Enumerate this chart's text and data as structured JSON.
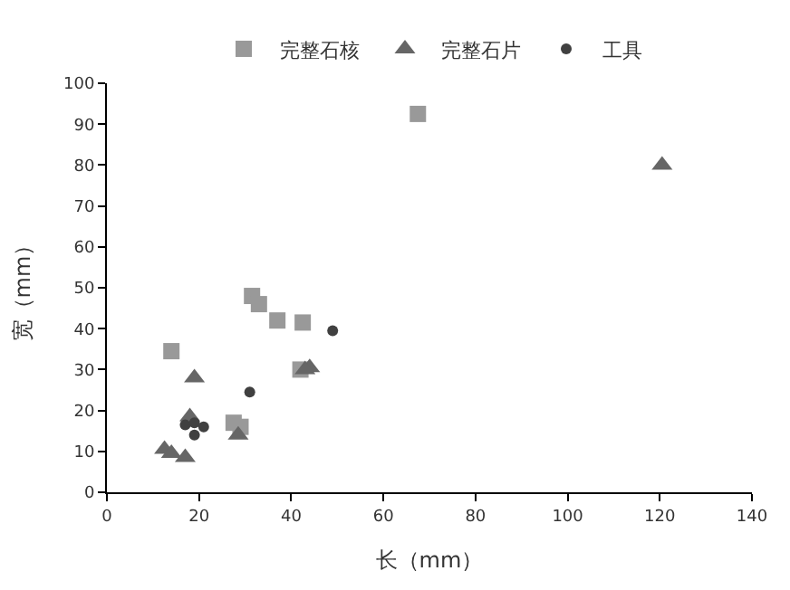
{
  "chart_data": {
    "type": "scatter",
    "xlabel": "长（mm）",
    "ylabel": "宽（mm）",
    "legend": "top",
    "xlim": [
      0,
      140
    ],
    "xticks": [
      0,
      20,
      40,
      60,
      80,
      100,
      120,
      140
    ],
    "ylim": [
      0,
      100
    ],
    "yticks": [
      0,
      10,
      20,
      30,
      40,
      50,
      60,
      70,
      80,
      90,
      100
    ],
    "series": [
      {
        "name": "完整石核",
        "color": "#999999",
        "marker": "square",
        "x": [
          14,
          31.5,
          33,
          37,
          42.5,
          42,
          27.5,
          29,
          67.5
        ],
        "values": [
          34.5,
          48,
          46,
          42,
          41.5,
          30,
          17,
          16,
          92.5
        ]
      },
      {
        "name": "完整石片",
        "color": "#666666",
        "marker": "triangle",
        "x": [
          120.5,
          44,
          19,
          18,
          12.5,
          14,
          17,
          28.5,
          43
        ],
        "values": [
          80,
          30.5,
          28,
          18.5,
          10.5,
          9.5,
          8.5,
          14,
          30
        ]
      },
      {
        "name": "工具",
        "color": "#404040",
        "marker": "circle",
        "x": [
          49,
          31,
          17,
          19,
          21,
          19
        ],
        "values": [
          39.5,
          24.5,
          16.5,
          17,
          16,
          14
        ]
      }
    ]
  }
}
